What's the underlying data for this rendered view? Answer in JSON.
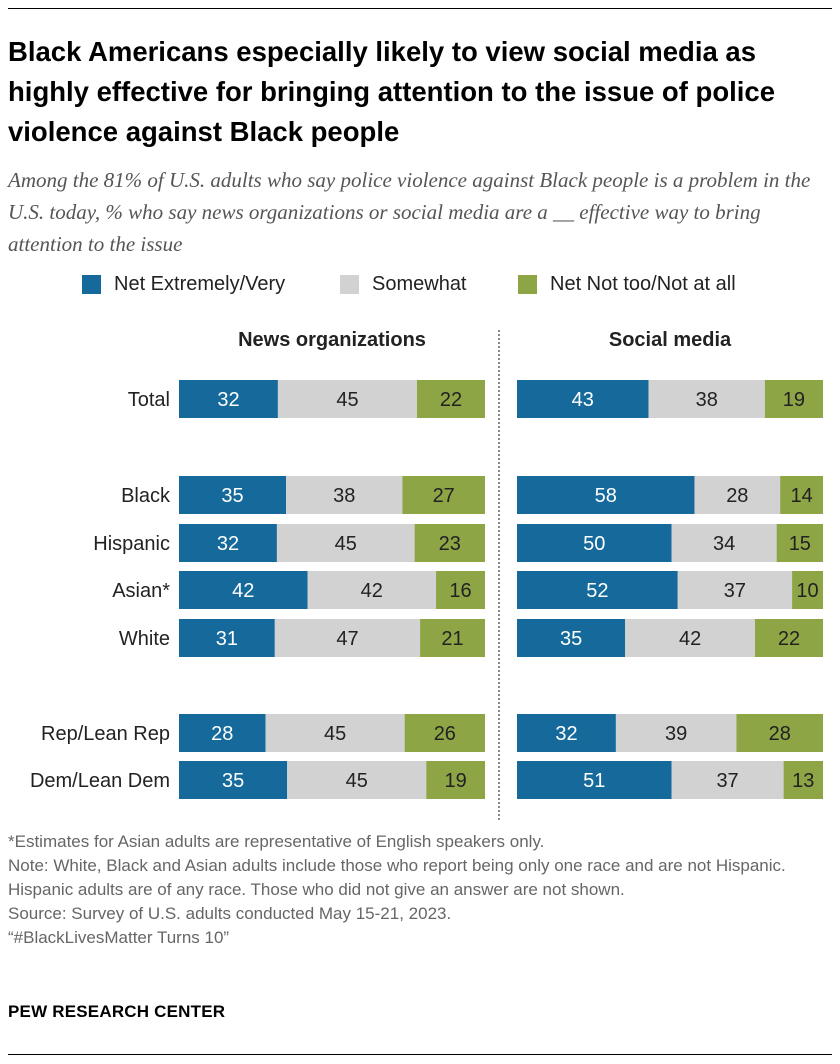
{
  "title": "Black Americans especially likely to view social media as highly effective for bringing attention to the issue of police violence against Black people",
  "subtitle": "Among the 81% of U.S. adults who say police violence against Black people is a problem in the U.S. today, % who say news organizations or social media are a __ effective way to bring attention to the issue",
  "colors": {
    "net_extremely_very": "#156a9b",
    "somewhat": "#d2d2d2",
    "net_not_too": "#8ea546"
  },
  "chart_data": {
    "type": "bar",
    "orientation": "horizontal",
    "stacked": true,
    "categories": [
      "Total",
      "Black",
      "Hispanic",
      "Asian*",
      "White",
      "Rep/Lean Rep",
      "Dem/Lean Dem"
    ],
    "legend": [
      "Net Extremely/Very",
      "Somewhat",
      "Net Not too/Not at all"
    ],
    "panels": [
      {
        "title": "News organizations",
        "series": [
          {
            "name": "Net Extremely/Very",
            "values": [
              32,
              35,
              32,
              42,
              31,
              28,
              35
            ]
          },
          {
            "name": "Somewhat",
            "values": [
              45,
              38,
              45,
              42,
              47,
              45,
              45
            ]
          },
          {
            "name": "Net Not too/Not at all",
            "values": [
              22,
              27,
              23,
              16,
              21,
              26,
              19
            ]
          }
        ]
      },
      {
        "title": "Social media",
        "series": [
          {
            "name": "Net Extremely/Very",
            "values": [
              43,
              58,
              50,
              52,
              35,
              32,
              51
            ]
          },
          {
            "name": "Somewhat",
            "values": [
              38,
              28,
              34,
              37,
              42,
              39,
              37
            ]
          },
          {
            "name": "Net Not too/Not at all",
            "values": [
              19,
              14,
              15,
              10,
              22,
              28,
              13
            ]
          }
        ]
      }
    ]
  },
  "notes": [
    "*Estimates for Asian adults are representative of English speakers only.",
    "Note: White, Black and Asian adults include those who report being only one race and are not Hispanic. Hispanic adults are of any race. Those who did not give an answer are not shown.",
    "Source: Survey of U.S. adults conducted May 15-21, 2023.",
    "“#BlackLivesMatter Turns 10”"
  ],
  "brand": "PEW RESEARCH CENTER"
}
